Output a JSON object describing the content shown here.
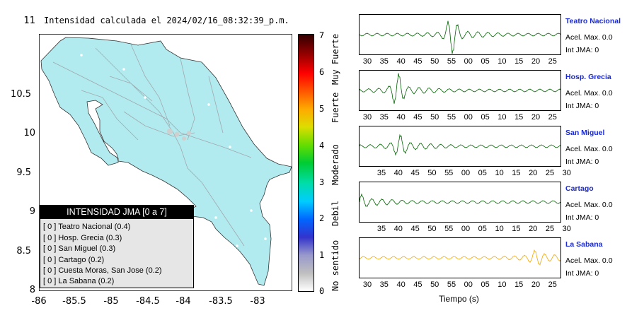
{
  "title": "Intensidad calculada el 2024/02/16_08:32:39_p.m.",
  "map": {
    "lat_ticks": [
      "11",
      "10.5",
      "10",
      "9.5",
      "9",
      "8.5",
      "8"
    ],
    "lon_ticks": [
      "-86",
      "-85.5",
      "-85",
      "-84.5",
      "-84",
      "-83.5",
      "-83"
    ],
    "land_color": "#b2ebef"
  },
  "legend": {
    "title": "INTENSIDAD JMA [0 a 7]",
    "rows": [
      "[ 0 ]  Teatro Nacional (0.4)",
      "[ 0 ]  Hosp. Grecia (0.3)",
      "[ 0 ]  San Miguel (0.3)",
      "[ 0 ]  Cartago (0.2)",
      "[ 0 ]  Cuesta Moras, San Jose (0.2)",
      "[ 0 ]  La Sabana (0.2)"
    ]
  },
  "colorbar": {
    "ticks": [
      "7",
      "6",
      "5",
      "4",
      "3",
      "2",
      "1",
      "0"
    ],
    "labels": [
      "Muy Fuerte",
      "Fuerte",
      "Moderado",
      "Debil",
      "No sentido"
    ]
  },
  "stations": [
    {
      "name": "Teatro Nacional",
      "acel": "Acel. Max. 0.0",
      "jma": "Int JMA: 0",
      "color": "#006400",
      "ticks": [
        "30",
        "35",
        "40",
        "45",
        "50",
        "55",
        "00",
        "05",
        "10",
        "15",
        "20",
        "25"
      ]
    },
    {
      "name": "Hosp. Grecia",
      "acel": "Acel. Max. 0.0",
      "jma": "Int JMA: 0",
      "color": "#006400",
      "ticks": [
        "30",
        "35",
        "40",
        "45",
        "50",
        "55",
        "00",
        "05",
        "10",
        "15",
        "20",
        "25"
      ]
    },
    {
      "name": "San Miguel",
      "acel": "Acel. Max. 0.0",
      "jma": "Int JMA: 0",
      "color": "#006400",
      "ticks": [
        "35",
        "40",
        "45",
        "50",
        "55",
        "00",
        "05",
        "10",
        "15",
        "20",
        "25",
        "30"
      ]
    },
    {
      "name": "Cartago",
      "acel": "Acel. Max. 0.0",
      "jma": "Int JMA: 0",
      "color": "#006400",
      "ticks": [
        "35",
        "40",
        "45",
        "50",
        "55",
        "00",
        "05",
        "10",
        "15",
        "20",
        "25",
        "30"
      ]
    },
    {
      "name": "La Sabana",
      "acel": "Acel. Max. 0.0",
      "jma": "Int JMA: 0",
      "color": "#f2a600",
      "ticks": [
        "30",
        "35",
        "40",
        "45",
        "50",
        "55",
        "00",
        "05",
        "10",
        "15",
        "20",
        "25"
      ]
    }
  ],
  "xlabel": "Tiempo (s)"
}
